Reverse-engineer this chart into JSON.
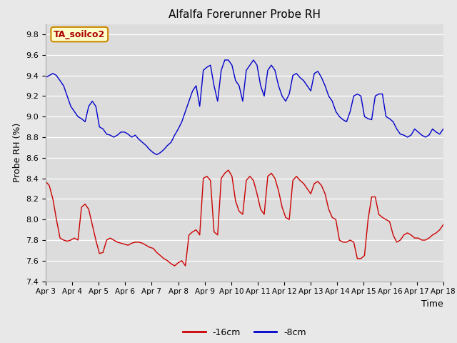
{
  "title": "Alfalfa Forerunner Probe RH",
  "ylabel": "Probe RH (%)",
  "xlabel": "Time",
  "ylim": [
    7.4,
    9.9
  ],
  "background_color": "#e8e8e8",
  "plot_bg_color": "#dcdcdc",
  "legend_label1": "-16cm",
  "legend_label2": "-8cm",
  "legend_color1": "#cc0000",
  "legend_color2": "#0000cc",
  "annotation_text": "TA_soilco2",
  "annotation_bg": "#ffffcc",
  "annotation_border": "#cc8800",
  "annotation_text_color": "#aa0000",
  "x_tick_labels": [
    "Apr 3",
    "Apr 4",
    "Apr 5",
    "Apr 6",
    "Apr 7",
    "Apr 8",
    "Apr 9",
    "Apr 10",
    "Apr 11",
    "Apr 12",
    "Apr 13",
    "Apr 14",
    "Apr 15",
    "Apr 16",
    "Apr 17",
    "Apr 18"
  ],
  "yticks": [
    7.4,
    7.6,
    7.8,
    8.0,
    8.2,
    8.4,
    8.6,
    8.8,
    9.0,
    9.2,
    9.4,
    9.6,
    9.8
  ],
  "red_data": [
    8.37,
    8.33,
    8.2,
    8.0,
    7.82,
    7.8,
    7.79,
    7.8,
    7.82,
    7.8,
    8.12,
    8.15,
    8.1,
    7.95,
    7.8,
    7.67,
    7.68,
    7.8,
    7.82,
    7.8,
    7.78,
    7.77,
    7.76,
    7.75,
    7.77,
    7.78,
    7.78,
    7.77,
    7.75,
    7.73,
    7.72,
    7.68,
    7.65,
    7.62,
    7.6,
    7.57,
    7.55,
    7.58,
    7.6,
    7.55,
    7.85,
    7.88,
    7.9,
    7.85,
    8.4,
    8.42,
    8.38,
    7.88,
    7.85,
    8.4,
    8.45,
    8.48,
    8.42,
    8.18,
    8.08,
    8.05,
    8.38,
    8.42,
    8.38,
    8.25,
    8.1,
    8.05,
    8.42,
    8.45,
    8.4,
    8.28,
    8.12,
    8.02,
    8.0,
    8.38,
    8.42,
    8.38,
    8.35,
    8.3,
    8.25,
    8.35,
    8.37,
    8.33,
    8.25,
    8.1,
    8.02,
    8.0,
    7.8,
    7.78,
    7.78,
    7.8,
    7.78,
    7.62,
    7.62,
    7.65,
    8.0,
    8.22,
    8.22,
    8.05,
    8.02,
    8.0,
    7.98,
    7.85,
    7.78,
    7.8,
    7.85,
    7.87,
    7.85,
    7.82,
    7.82,
    7.8,
    7.8,
    7.82,
    7.85,
    7.87,
    7.9,
    7.95
  ],
  "blue_data": [
    9.38,
    9.4,
    9.42,
    9.4,
    9.35,
    9.3,
    9.2,
    9.1,
    9.05,
    9.0,
    8.98,
    8.95,
    9.1,
    9.15,
    9.1,
    8.9,
    8.88,
    8.83,
    8.82,
    8.8,
    8.82,
    8.85,
    8.85,
    8.83,
    8.8,
    8.82,
    8.78,
    8.75,
    8.72,
    8.68,
    8.65,
    8.63,
    8.65,
    8.68,
    8.72,
    8.75,
    8.82,
    8.88,
    8.95,
    9.05,
    9.15,
    9.25,
    9.3,
    9.1,
    9.45,
    9.48,
    9.5,
    9.3,
    9.15,
    9.45,
    9.55,
    9.55,
    9.5,
    9.35,
    9.3,
    9.15,
    9.45,
    9.5,
    9.55,
    9.5,
    9.3,
    9.2,
    9.45,
    9.5,
    9.45,
    9.3,
    9.2,
    9.15,
    9.22,
    9.4,
    9.42,
    9.38,
    9.35,
    9.3,
    9.25,
    9.42,
    9.44,
    9.38,
    9.3,
    9.2,
    9.15,
    9.05,
    9.0,
    8.97,
    8.95,
    9.05,
    9.2,
    9.22,
    9.2,
    9.0,
    8.98,
    8.97,
    9.2,
    9.22,
    9.22,
    9.0,
    8.98,
    8.95,
    8.88,
    8.83,
    8.82,
    8.8,
    8.82,
    8.88,
    8.85,
    8.82,
    8.8,
    8.82,
    8.88,
    8.85,
    8.83,
    8.88
  ]
}
